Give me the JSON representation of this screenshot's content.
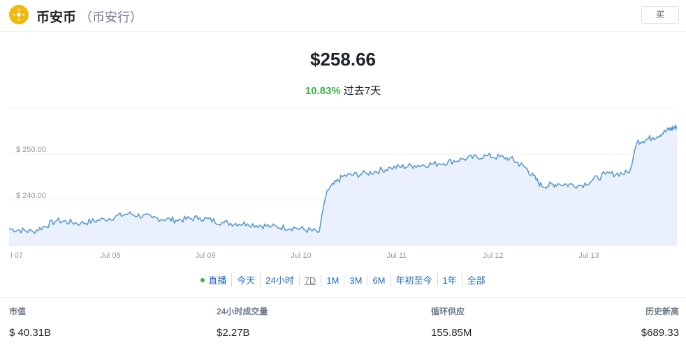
{
  "header": {
    "coin_name": "币安币",
    "coin_sub": "（币安行）",
    "buy_label": "买",
    "logo_icon": "bnb-logo-icon",
    "brand_color": "#f0b90b"
  },
  "price": "$258.66",
  "change": {
    "value": "10.83%",
    "label": "过去7天",
    "color": "#3cb34a"
  },
  "chart_data": {
    "type": "area",
    "title": "",
    "xlabel": "",
    "ylabel": "",
    "x_ticks": [
      "l 07",
      "Jul 08",
      "Jul 09",
      "Jul 10",
      "Jul 11",
      "Jul 12",
      "Jul 13"
    ],
    "y_ticks": [
      "$ 240.00",
      "$ 250.00"
    ],
    "ylim": [
      230.1,
      260.5
    ],
    "grid": "horizontal",
    "line_color": "#5b9bd5",
    "fill_color": "#eaf1fc",
    "series": [
      {
        "x": [
          "Jul 07 00:00",
          "Jul 07 06:00",
          "Jul 07 12:00",
          "Jul 07 18:00",
          "Jul 08 00:00",
          "Jul 08 06:00",
          "Jul 08 12:00",
          "Jul 08 18:00",
          "Jul 09 00:00",
          "Jul 09 06:00",
          "Jul 09 12:00",
          "Jul 09 18:00",
          "Jul 10 00:00",
          "Jul 10 06:00",
          "Jul 10 08:00",
          "Jul 10 12:00",
          "Jul 10 18:00",
          "Jul 11 00:00",
          "Jul 11 06:00",
          "Jul 11 12:00",
          "Jul 11 18:00",
          "Jul 12 00:00",
          "Jul 12 06:00",
          "Jul 12 10:00",
          "Jul 12 14:00",
          "Jul 12 18:00",
          "Jul 13 00:00",
          "Jul 13 06:00",
          "Jul 13 12:00",
          "Jul 13 14:00",
          "Jul 13 18:00",
          "Jul 13 22:00",
          "Jul 14 00:00"
        ],
        "values": [
          233.7,
          233.1,
          235.5,
          234.9,
          235.8,
          237.0,
          236.1,
          235.6,
          236.1,
          235.0,
          234.8,
          234.2,
          233.9,
          233.0,
          242.0,
          245.2,
          245.8,
          247.0,
          247.5,
          247.9,
          248.9,
          249.6,
          249.1,
          247.0,
          243.0,
          243.5,
          243.2,
          245.6,
          245.9,
          252.7,
          253.6,
          255.3,
          256.0
        ]
      }
    ]
  },
  "ranges": [
    {
      "label": "直播",
      "live": true
    },
    {
      "label": "今天"
    },
    {
      "label": "24小时"
    },
    {
      "label": "7D",
      "active": true
    },
    {
      "label": "1M"
    },
    {
      "label": "3M"
    },
    {
      "label": "6M"
    },
    {
      "label": "年初至今"
    },
    {
      "label": "1年"
    },
    {
      "label": "全部"
    }
  ],
  "stats": [
    {
      "label": "市值",
      "value": "$ 40.31B"
    },
    {
      "label": "24小时成交量",
      "value": "$2.27B"
    },
    {
      "label": "循环供应",
      "value": "155.85M"
    },
    {
      "label": "历史新高",
      "value": "$689.33"
    }
  ]
}
